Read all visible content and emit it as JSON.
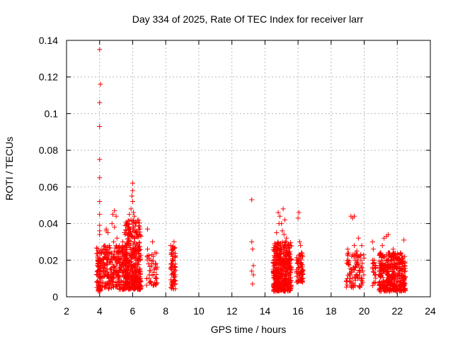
{
  "chart_data": {
    "type": "scatter",
    "title": "Day 334 of 2025, Rate Of TEC Index for receiver larr",
    "xlabel": "GPS time / hours",
    "ylabel": "ROTI / TECUs",
    "xlim": [
      2,
      24
    ],
    "ylim": [
      0,
      0.14
    ],
    "xticks": [
      "2",
      "4",
      "6",
      "8",
      "10",
      "12",
      "14",
      "16",
      "18",
      "20",
      "22",
      "24"
    ],
    "yticks": [
      "0",
      "0.02",
      "0.04",
      "0.06",
      "0.08",
      "0.1",
      "0.12",
      "0.14"
    ],
    "grid": true,
    "marker": "+",
    "color": "#ff0000",
    "series": [
      {
        "points": [
          [
            4.0,
            0.135
          ],
          [
            4.05,
            0.116
          ],
          [
            4.0,
            0.106
          ],
          [
            4.0,
            0.093
          ],
          [
            4.0,
            0.075
          ],
          [
            4.0,
            0.065
          ],
          [
            4.0,
            0.052
          ],
          [
            4.0,
            0.045
          ],
          [
            4.0,
            0.039
          ],
          [
            4.0,
            0.036
          ],
          [
            4.0,
            0.034
          ],
          [
            4.0,
            0.024
          ],
          [
            3.95,
            0.018
          ],
          [
            4.0,
            0.014
          ],
          [
            4.0,
            0.01
          ],
          [
            3.95,
            0.006
          ],
          [
            4.1,
            0.02
          ],
          [
            4.2,
            0.016
          ],
          [
            4.3,
            0.022
          ],
          [
            4.35,
            0.012
          ],
          [
            4.4,
            0.036
          ],
          [
            4.45,
            0.018
          ],
          [
            4.5,
            0.035
          ],
          [
            4.55,
            0.01
          ],
          [
            4.6,
            0.028
          ],
          [
            4.65,
            0.015
          ],
          [
            4.7,
            0.024
          ],
          [
            4.75,
            0.04
          ],
          [
            4.8,
            0.045
          ],
          [
            4.85,
            0.03
          ],
          [
            4.9,
            0.047
          ],
          [
            4.9,
            0.038
          ],
          [
            4.95,
            0.02
          ],
          [
            5.0,
            0.044
          ],
          [
            5.0,
            0.012
          ],
          [
            5.05,
            0.032
          ],
          [
            5.1,
            0.022
          ],
          [
            5.15,
            0.008
          ],
          [
            5.2,
            0.025
          ],
          [
            5.3,
            0.018
          ],
          [
            5.35,
            0.014
          ],
          [
            5.4,
            0.03
          ],
          [
            5.45,
            0.02
          ],
          [
            5.5,
            0.035
          ],
          [
            5.55,
            0.011
          ],
          [
            5.6,
            0.026
          ],
          [
            5.65,
            0.04
          ],
          [
            5.7,
            0.038
          ],
          [
            5.75,
            0.018
          ],
          [
            5.8,
            0.045
          ],
          [
            5.85,
            0.028
          ],
          [
            5.9,
            0.042
          ],
          [
            5.9,
            0.048
          ],
          [
            5.95,
            0.055
          ],
          [
            6.0,
            0.062
          ],
          [
            6.0,
            0.058
          ],
          [
            6.0,
            0.052
          ],
          [
            6.05,
            0.046
          ],
          [
            6.05,
            0.038
          ],
          [
            6.1,
            0.044
          ],
          [
            6.1,
            0.03
          ],
          [
            6.15,
            0.025
          ],
          [
            6.2,
            0.035
          ],
          [
            6.2,
            0.016
          ],
          [
            6.25,
            0.022
          ],
          [
            6.3,
            0.028
          ],
          [
            6.35,
            0.012
          ],
          [
            6.4,
            0.034
          ],
          [
            6.45,
            0.02
          ],
          [
            5.55,
            0.034
          ],
          [
            5.6,
            0.035
          ],
          [
            5.65,
            0.028
          ],
          [
            5.7,
            0.034
          ],
          [
            5.75,
            0.03
          ],
          [
            4.4,
            0.037
          ],
          [
            4.2,
            0.008
          ],
          [
            4.7,
            0.006
          ],
          [
            5.0,
            0.028
          ],
          [
            5.2,
            0.02
          ],
          [
            5.9,
            0.033
          ],
          [
            6.9,
            0.037
          ],
          [
            6.9,
            0.026
          ],
          [
            6.95,
            0.018
          ],
          [
            7.0,
            0.012
          ],
          [
            7.05,
            0.02
          ],
          [
            7.1,
            0.008
          ],
          [
            7.2,
            0.03
          ],
          [
            7.25,
            0.022
          ],
          [
            7.3,
            0.015
          ],
          [
            7.35,
            0.024
          ],
          [
            7.4,
            0.018
          ],
          [
            7.45,
            0.01
          ],
          [
            8.3,
            0.028
          ],
          [
            8.35,
            0.024
          ],
          [
            8.35,
            0.012
          ],
          [
            8.4,
            0.02
          ],
          [
            8.4,
            0.006
          ],
          [
            8.45,
            0.026
          ],
          [
            8.5,
            0.016
          ],
          [
            8.5,
            0.03
          ],
          [
            8.55,
            0.022
          ],
          [
            8.55,
            0.009
          ],
          [
            13.2,
            0.053
          ],
          [
            13.2,
            0.03
          ],
          [
            13.25,
            0.026
          ],
          [
            13.3,
            0.017
          ],
          [
            13.2,
            0.014
          ],
          [
            13.3,
            0.012
          ],
          [
            13.25,
            0.007
          ],
          [
            14.6,
            0.028
          ],
          [
            14.7,
            0.035
          ],
          [
            14.8,
            0.046
          ],
          [
            14.85,
            0.04
          ],
          [
            14.9,
            0.044
          ],
          [
            15.0,
            0.04
          ],
          [
            15.05,
            0.036
          ],
          [
            15.1,
            0.048
          ],
          [
            15.15,
            0.034
          ],
          [
            15.2,
            0.042
          ],
          [
            15.25,
            0.03
          ],
          [
            15.3,
            0.028
          ],
          [
            15.35,
            0.024
          ],
          [
            15.4,
            0.02
          ],
          [
            15.45,
            0.016
          ],
          [
            15.5,
            0.012
          ],
          [
            15.0,
            0.026
          ],
          [
            15.05,
            0.02
          ],
          [
            15.1,
            0.014
          ],
          [
            15.15,
            0.01
          ],
          [
            15.2,
            0.018
          ],
          [
            15.25,
            0.022
          ],
          [
            15.3,
            0.008
          ],
          [
            14.9,
            0.012
          ],
          [
            14.95,
            0.018
          ],
          [
            14.8,
            0.022
          ],
          [
            14.7,
            0.016
          ],
          [
            15.4,
            0.005
          ],
          [
            15.2,
            0.004
          ],
          [
            14.6,
            0.01
          ],
          [
            15.3,
            0.032
          ],
          [
            16.0,
            0.043
          ],
          [
            16.05,
            0.046
          ],
          [
            16.1,
            0.03
          ],
          [
            16.15,
            0.028
          ],
          [
            16.2,
            0.024
          ],
          [
            16.0,
            0.02
          ],
          [
            16.05,
            0.016
          ],
          [
            16.1,
            0.012
          ],
          [
            16.15,
            0.018
          ],
          [
            16.2,
            0.014
          ],
          [
            16.25,
            0.022
          ],
          [
            16.3,
            0.01
          ],
          [
            19.0,
            0.026
          ],
          [
            19.05,
            0.018
          ],
          [
            19.1,
            0.012
          ],
          [
            19.2,
            0.044
          ],
          [
            19.25,
            0.022
          ],
          [
            19.3,
            0.043
          ],
          [
            19.35,
            0.016
          ],
          [
            19.4,
            0.044
          ],
          [
            19.4,
            0.028
          ],
          [
            19.45,
            0.02
          ],
          [
            19.5,
            0.012
          ],
          [
            19.55,
            0.025
          ],
          [
            19.6,
            0.018
          ],
          [
            19.65,
            0.032
          ],
          [
            19.7,
            0.022
          ],
          [
            19.75,
            0.014
          ],
          [
            19.8,
            0.02
          ],
          [
            19.85,
            0.028
          ],
          [
            19.9,
            0.008
          ],
          [
            20.5,
            0.03
          ],
          [
            20.55,
            0.026
          ],
          [
            20.6,
            0.02
          ],
          [
            20.65,
            0.016
          ],
          [
            20.7,
            0.012
          ],
          [
            20.6,
            0.008
          ],
          [
            21.0,
            0.024
          ],
          [
            21.05,
            0.018
          ],
          [
            21.1,
            0.028
          ],
          [
            21.15,
            0.014
          ],
          [
            21.2,
            0.032
          ],
          [
            21.25,
            0.022
          ],
          [
            21.3,
            0.016
          ],
          [
            21.35,
            0.033
          ],
          [
            21.4,
            0.012
          ],
          [
            21.45,
            0.034
          ],
          [
            21.5,
            0.024
          ],
          [
            21.55,
            0.018
          ],
          [
            21.6,
            0.008
          ],
          [
            21.65,
            0.02
          ],
          [
            21.7,
            0.014
          ],
          [
            21.75,
            0.026
          ],
          [
            21.8,
            0.01
          ],
          [
            21.85,
            0.018
          ],
          [
            21.9,
            0.022
          ],
          [
            21.95,
            0.006
          ],
          [
            22.0,
            0.016
          ],
          [
            22.05,
            0.012
          ],
          [
            22.1,
            0.02
          ],
          [
            22.15,
            0.014
          ],
          [
            22.2,
            0.024
          ],
          [
            22.25,
            0.01
          ],
          [
            22.3,
            0.018
          ],
          [
            22.35,
            0.008
          ],
          [
            22.4,
            0.031
          ],
          [
            22.45,
            0.022
          ],
          [
            22.5,
            0.014
          ],
          [
            21.5,
            0.004
          ],
          [
            21.7,
            0.005
          ]
        ]
      }
    ],
    "dense_clusters": [
      {
        "x_range": [
          3.8,
          6.5
        ],
        "y_range": [
          0.004,
          0.028
        ],
        "count": 420
      },
      {
        "x_range": [
          3.9,
          4.1
        ],
        "y_range": [
          0.003,
          0.022
        ],
        "count": 40
      },
      {
        "x_range": [
          5.5,
          6.5
        ],
        "y_range": [
          0.004,
          0.042
        ],
        "count": 220
      },
      {
        "x_range": [
          6.8,
          7.5
        ],
        "y_range": [
          0.006,
          0.024
        ],
        "count": 40
      },
      {
        "x_range": [
          8.3,
          8.6
        ],
        "y_range": [
          0.004,
          0.028
        ],
        "count": 60
      },
      {
        "x_range": [
          14.5,
          15.6
        ],
        "y_range": [
          0.003,
          0.03
        ],
        "count": 420
      },
      {
        "x_range": [
          15.9,
          16.3
        ],
        "y_range": [
          0.008,
          0.024
        ],
        "count": 70
      },
      {
        "x_range": [
          18.9,
          20.0
        ],
        "y_range": [
          0.005,
          0.024
        ],
        "count": 90
      },
      {
        "x_range": [
          20.5,
          20.7
        ],
        "y_range": [
          0.006,
          0.02
        ],
        "count": 20
      },
      {
        "x_range": [
          20.9,
          22.5
        ],
        "y_range": [
          0.003,
          0.024
        ],
        "count": 380
      }
    ]
  }
}
